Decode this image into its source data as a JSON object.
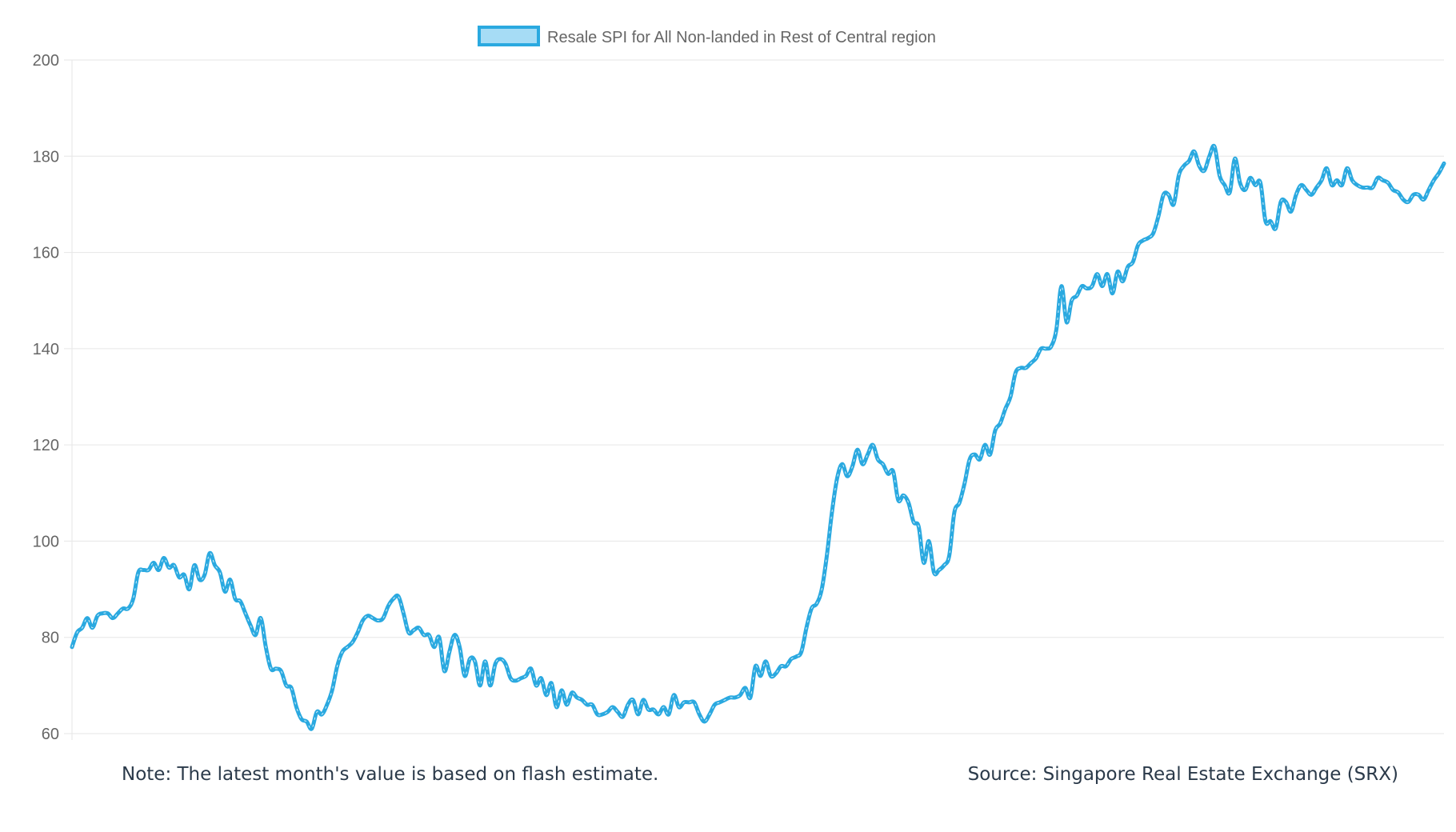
{
  "chart_data": {
    "type": "line",
    "title": "",
    "xlabel": "",
    "ylabel": "",
    "ylim": [
      60,
      200
    ],
    "yticks": [
      60,
      80,
      100,
      120,
      140,
      160,
      180,
      200
    ],
    "grid": true,
    "legend_position": "top-center",
    "series": [
      {
        "name": "Resale SPI for All Non-landed in Rest of Central region",
        "color": "#2aa9e0",
        "fill": "#a6dcf5",
        "values": [
          78,
          81,
          82,
          84,
          82,
          84.5,
          85,
          85,
          84,
          85,
          86,
          86,
          88,
          93.5,
          94,
          94,
          95.5,
          94,
          96.5,
          94.5,
          95,
          92.5,
          93,
          90,
          95,
          92,
          93,
          97.5,
          95,
          93.5,
          89.5,
          92,
          88,
          87.5,
          85,
          82.5,
          80.5,
          84,
          78,
          73.5,
          73.5,
          73,
          70,
          69.5,
          65.5,
          63,
          62.5,
          61,
          64.5,
          64,
          66,
          69,
          74,
          77,
          78,
          79,
          81,
          83.5,
          84.5,
          84,
          83.5,
          84,
          86.5,
          88,
          88.5,
          85,
          81,
          81.5,
          82,
          80.5,
          80.5,
          78,
          80,
          73,
          77,
          80.5,
          78,
          72,
          75.5,
          75,
          70,
          75,
          70,
          74.5,
          75.5,
          74.5,
          71.5,
          71,
          71.5,
          72,
          73.5,
          70,
          71.5,
          68,
          70.5,
          65.5,
          69,
          66,
          68.5,
          67.5,
          67,
          66,
          66,
          64,
          64,
          64.5,
          65.5,
          64.5,
          63.5,
          66,
          67,
          64,
          67,
          65,
          65,
          64,
          65.5,
          64,
          68,
          65.5,
          66.5,
          66.5,
          66.5,
          64,
          62.5,
          64,
          66,
          66.5,
          67,
          67.5,
          67.5,
          68,
          69.5,
          67.5,
          74,
          72,
          75,
          72,
          72.5,
          74,
          74,
          75.5,
          76,
          77,
          82,
          86,
          87,
          90,
          97,
          106,
          113,
          116,
          113.5,
          115.5,
          119,
          116,
          118,
          120,
          117,
          116,
          114,
          114.5,
          108.5,
          109.5,
          108,
          104,
          103,
          95.5,
          100,
          93.5,
          94,
          95,
          97,
          106,
          108,
          112,
          117,
          118,
          117,
          120,
          118,
          123,
          124.5,
          127.5,
          130,
          135,
          136,
          136,
          137,
          138,
          140,
          140,
          140.5,
          144,
          153,
          145.5,
          150,
          151,
          153,
          152.5,
          153,
          155.5,
          153,
          155.5,
          151.5,
          156,
          154,
          157,
          158,
          161.5,
          162.5,
          163,
          164,
          167.5,
          172,
          172,
          170,
          176,
          178,
          179,
          181,
          178,
          177,
          180,
          182,
          176,
          174,
          172.5,
          179.5,
          174.5,
          173,
          175.5,
          174,
          174.5,
          166.5,
          166.5,
          165,
          170.5,
          170.5,
          168.5,
          172,
          174,
          173,
          172,
          173.5,
          175,
          177.5,
          174,
          175,
          174,
          177.5,
          175,
          174,
          173.5,
          173.5,
          173.5,
          175.5,
          175,
          174.5,
          173,
          172.5,
          171,
          170.5,
          172,
          172,
          171,
          173,
          175,
          176.5,
          178.5
        ]
      }
    ]
  },
  "footer": {
    "note": "Note: The latest month's value is based on flash estimate.",
    "source": "Source: Singapore Real Estate Exchange (SRX)"
  }
}
